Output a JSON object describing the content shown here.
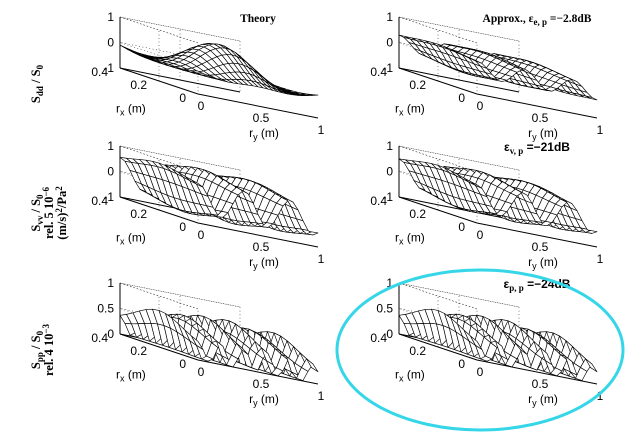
{
  "figure": {
    "highlight_color": "#35d6e8"
  },
  "chart_data": [
    {
      "type": "surface",
      "title": "Theory",
      "ylabel": {
        "main": "S",
        "sub1": "dd",
        "mid": " / S",
        "sub2": "0"
      },
      "axes": {
        "x_label": "r",
        "x_sub": "x",
        "x_unit": " (m)",
        "y_label": "r",
        "y_sub": "y",
        "y_unit": " (m)"
      },
      "xlim": [
        0,
        0.4
      ],
      "ylim": [
        0,
        1
      ],
      "zlim": [
        -1,
        1
      ],
      "x_ticks": [
        "0",
        "0.2",
        "0.4"
      ],
      "y_ticks": [
        "0",
        "0.5",
        "1"
      ],
      "z_ticks": [
        "-1",
        "0",
        "1"
      ],
      "grid": true,
      "surface": {
        "kind": "sinc",
        "amplitude": 0.45,
        "frequency": 3.0
      }
    },
    {
      "type": "surface",
      "title": {
        "prefix": "Approx., ε",
        "sub": "e, p",
        "suffix": " =−2.8dB"
      },
      "axes": {
        "x_label": "r",
        "x_sub": "x",
        "x_unit": " (m)",
        "y_label": "r",
        "y_sub": "y",
        "y_unit": " (m)"
      },
      "xlim": [
        0,
        0.4
      ],
      "ylim": [
        0,
        1
      ],
      "zlim": [
        -1,
        1
      ],
      "x_ticks": [
        "0",
        "0.2",
        "0.4"
      ],
      "y_ticks": [
        "0",
        "0.5",
        "1"
      ],
      "z_ticks": [
        "-1",
        "0",
        "1"
      ],
      "grid": true,
      "surface": {
        "kind": "cosine",
        "amplitude": 0.5,
        "frequency": 2.5
      }
    },
    {
      "type": "surface",
      "ylabel": {
        "main": "S",
        "sub1": "vv",
        "mid": " / S",
        "sub2": "0",
        "line2": "rel. 5 10",
        "line2_sup": "−6",
        "line3": "(m/s)",
        "line3_sup": "2",
        "line3_end": "/Pa",
        "line3_sup2": "2"
      },
      "axes": {
        "x_label": "r",
        "x_sub": "x",
        "x_unit": " (m)",
        "y_label": "r",
        "y_sub": "y",
        "y_unit": " (m)"
      },
      "xlim": [
        0,
        0.4
      ],
      "ylim": [
        0,
        1
      ],
      "zlim": [
        -1,
        1
      ],
      "x_ticks": [
        "0",
        "0.2",
        "0.4"
      ],
      "y_ticks": [
        "0",
        "0.5",
        "1"
      ],
      "z_ticks": [
        "-1",
        "0",
        "1"
      ],
      "grid": true,
      "surface": {
        "kind": "cosine",
        "amplitude": 0.95,
        "frequency": 2.6
      }
    },
    {
      "type": "surface",
      "title": {
        "prefix": "ε",
        "sub": "v, p",
        "suffix": " =−21dB"
      },
      "axes": {
        "x_label": "r",
        "x_sub": "x",
        "x_unit": " (m)",
        "y_label": "r",
        "y_sub": "y",
        "y_unit": " (m)"
      },
      "xlim": [
        0,
        0.4
      ],
      "ylim": [
        0,
        1
      ],
      "zlim": [
        -1,
        1
      ],
      "x_ticks": [
        "0",
        "0.2",
        "0.4"
      ],
      "y_ticks": [
        "0",
        "0.5",
        "1"
      ],
      "z_ticks": [
        "-1",
        "0",
        "1"
      ],
      "grid": true,
      "surface": {
        "kind": "cosine",
        "amplitude": 0.85,
        "frequency": 2.6
      }
    },
    {
      "type": "surface",
      "ylabel": {
        "main": "S",
        "sub1": "pp",
        "mid": " / S",
        "sub2": "0",
        "line2": "rel. 4 10",
        "line2_sup": "−3"
      },
      "axes": {
        "x_label": "r",
        "x_sub": "x",
        "x_unit": " (m)",
        "y_label": "r",
        "y_sub": "y",
        "y_unit": " (m)"
      },
      "xlim": [
        0,
        0.4
      ],
      "ylim": [
        0,
        1
      ],
      "zlim": [
        0,
        1
      ],
      "x_ticks": [
        "0",
        "0.2",
        "0.4"
      ],
      "y_ticks": [
        "0",
        "0.5",
        "1"
      ],
      "z_ticks": [
        "0",
        "0.5",
        "1"
      ],
      "grid": true,
      "surface": {
        "kind": "squared",
        "amplitude": 0.8,
        "frequency": 2.6
      }
    },
    {
      "type": "surface",
      "title": {
        "prefix": "ε",
        "sub": "p, p",
        "suffix": " =−24dB"
      },
      "axes": {
        "x_label": "r",
        "x_sub": "x",
        "x_unit": " (m)",
        "y_label": "r",
        "y_sub": "y",
        "y_unit": " (m)"
      },
      "xlim": [
        0,
        0.4
      ],
      "ylim": [
        0,
        1
      ],
      "zlim": [
        0,
        1
      ],
      "x_ticks": [
        "0",
        "0.2",
        "0.4"
      ],
      "y_ticks": [
        "0",
        "0.5",
        "1"
      ],
      "z_ticks": [
        "0",
        "0.5",
        "1"
      ],
      "grid": true,
      "highlighted": true,
      "surface": {
        "kind": "squared",
        "amplitude": 0.8,
        "frequency": 2.6
      }
    }
  ]
}
